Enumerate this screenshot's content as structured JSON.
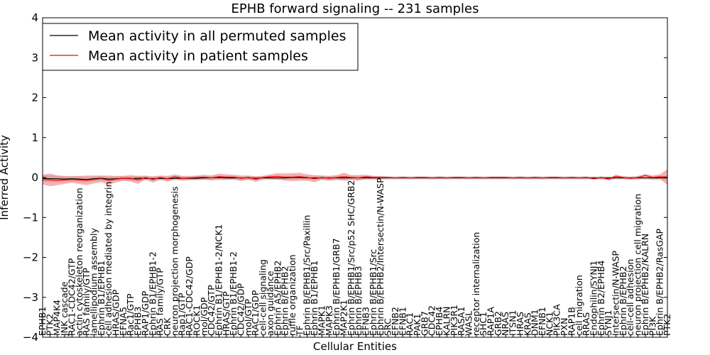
{
  "chart_data": {
    "type": "line",
    "title": "EPHB forward signaling -- 231 samples",
    "xlabel": "Cellular Entities",
    "ylabel": "Inferred Activity",
    "ylim": [
      -4,
      4
    ],
    "yticks": [
      "4",
      "3",
      "2",
      "1",
      "0",
      "−1",
      "−2",
      "−3",
      "−4"
    ],
    "grid": false,
    "legend_position": "top-left",
    "categories": [
      "EPHB1",
      "PTK2",
      "MAP4K4",
      "JNK cascade",
      "RAC1-CDC42/GTP",
      "actin cytoskeleton reorganization",
      "RAS family/GTP",
      "lamellipodium assembly",
      "Ephrin B1/EPHB1",
      "cell adhesion mediated by integrin",
      "HRAS/GDP",
      "EFNA5",
      "Rac1/GTP",
      "EPHB3",
      "RAP1/GDP",
      "Ephrin B1/EPHB1-2",
      "RAS family/GTP",
      "CRK",
      "neuron projection morphogenesis",
      "Rap1/GTP",
      "RAC1-CDC42/GDP",
      "ROCK1",
      "mol/GDP",
      "CDC42/GTP",
      "Ephrin B1/EPHB1-2/NCK1",
      "HRAS/GTP",
      "Ephrin B1/EPHB1-2",
      "CDC42/GDP",
      "mol/GTP",
      "RAC1/GDP",
      "cell-cell signaling",
      "axon guidance",
      "Ephrin A5/EPHB2",
      "Ephrin B/EPHB2",
      "ruffle organization",
      "TF",
      "Ephrin B/EPHB1/Src/Paxillin",
      "Ephrin B1/EPHB1",
      "MAPK1",
      "MAPK3",
      "Ephrin B/EPHB1/GRB7",
      "MAP2K1",
      "Ephrin B/EPHB1/Src/p52 SHC/GRB2",
      "Ephrin B/EPHB3",
      "EFNB3",
      "Ephrin B/EPHB1/Src",
      "Ephrin B/EPHB2/Intersectin/N-WASP",
      "SRC",
      "EFNB2",
      "EFNB1",
      "RAC1",
      "PAK1",
      "GRB7",
      "CDC42",
      "EPHB4",
      "KALRN",
      "PIK3R1",
      "RASA1",
      "WASL",
      "receptor internalization",
      "SHC1",
      "RAP1A",
      "GRB2",
      "NRAS",
      "ITSN1",
      "HRAS",
      "KRAS",
      "DNM1",
      "EFNB1",
      "NCK1",
      "PIK3CA",
      "PXN",
      "RAP1B",
      "cell migration",
      "RRAS",
      "Endophilin/SYNJ1",
      "Ephrin B2/EPHB4",
      "SYNJ1",
      "Intersectin/N-WASP",
      "Ephrin B/EPHB2",
      "cell-cell adhesion",
      "neuron projection cell migration",
      "Ephrin B/EPHB2/KALRN",
      "PI3K",
      "Ephrin B/EPHB2/RasGAP",
      "PTK2"
    ],
    "series": [
      {
        "name": "Mean activity in all permuted samples",
        "color": "#000000",
        "values": [
          -0.02,
          -0.03,
          -0.03,
          -0.04,
          -0.03,
          -0.04,
          -0.05,
          -0.03,
          -0.02,
          -0.04,
          -0.03,
          -0.02,
          -0.03,
          -0.02,
          -0.02,
          -0.03,
          -0.02,
          -0.03,
          -0.02,
          -0.02,
          -0.02,
          -0.02,
          -0.01,
          -0.01,
          0.0,
          -0.01,
          -0.01,
          -0.01,
          -0.01,
          -0.02,
          -0.01,
          -0.01,
          -0.01,
          -0.01,
          0.0,
          0.0,
          -0.01,
          -0.01,
          -0.01,
          -0.01,
          -0.01,
          -0.01,
          -0.01,
          -0.01,
          -0.01,
          -0.01,
          -0.01,
          -0.01,
          -0.01,
          -0.01,
          -0.01,
          -0.01,
          -0.01,
          -0.01,
          -0.01,
          -0.01,
          -0.01,
          -0.01,
          -0.01,
          -0.01,
          -0.01,
          -0.01,
          -0.01,
          -0.01,
          -0.01,
          -0.01,
          -0.01,
          -0.01,
          -0.01,
          -0.01,
          -0.01,
          -0.01,
          -0.01,
          -0.01,
          -0.01,
          -0.01,
          -0.01,
          -0.01,
          -0.01,
          -0.01,
          -0.01,
          -0.01,
          -0.01,
          -0.01,
          -0.01,
          -0.01
        ]
      },
      {
        "name": "Mean activity in patient samples",
        "color": "#ff0000",
        "values": [
          -0.05,
          -0.06,
          -0.07,
          -0.06,
          -0.05,
          -0.06,
          -0.07,
          -0.05,
          -0.03,
          -0.07,
          -0.04,
          -0.02,
          -0.02,
          -0.06,
          0.0,
          -0.05,
          0.0,
          -0.03,
          0.02,
          -0.02,
          -0.01,
          0.0,
          0.01,
          -0.01,
          0.02,
          0.01,
          0.01,
          -0.02,
          0.0,
          -0.04,
          0.0,
          0.02,
          0.03,
          0.01,
          0.01,
          0.02,
          0.0,
          -0.03,
          0.0,
          -0.02,
          0.0,
          0.02,
          0.0,
          -0.01,
          0.02,
          0.0,
          0.0,
          0.0,
          -0.01,
          0.0,
          -0.01,
          0.0,
          0.0,
          -0.01,
          0.0,
          -0.01,
          0.0,
          0.0,
          -0.01,
          0.0,
          -0.01,
          0.0,
          0.0,
          0.0,
          -0.01,
          0.0,
          -0.01,
          0.0,
          -0.01,
          0.0,
          0.0,
          -0.01,
          0.0,
          -0.01,
          0.0,
          -0.03,
          0.0,
          -0.04,
          0.03,
          0.0,
          -0.02,
          0.0,
          0.05,
          0.0,
          0.02,
          0.01
        ]
      }
    ],
    "bands": [
      {
        "series": "Mean activity in all permuted samples",
        "color": "#b0b0b0",
        "half_width": [
          0.08,
          0.08,
          0.08,
          0.07,
          0.07,
          0.07,
          0.07,
          0.06,
          0.06,
          0.06,
          0.06,
          0.06,
          0.06,
          0.06,
          0.05,
          0.05,
          0.05,
          0.05,
          0.05,
          0.05,
          0.05,
          0.05,
          0.05,
          0.05,
          0.05,
          0.05,
          0.05,
          0.05,
          0.05,
          0.05,
          0.05,
          0.05,
          0.05,
          0.05,
          0.05,
          0.05,
          0.05,
          0.05,
          0.05,
          0.05,
          0.05,
          0.05,
          0.05,
          0.05,
          0.05,
          0.05,
          0.05,
          0.04,
          0.04,
          0.04,
          0.04,
          0.04,
          0.04,
          0.04,
          0.04,
          0.04,
          0.04,
          0.04,
          0.04,
          0.04,
          0.04,
          0.04,
          0.04,
          0.04,
          0.04,
          0.04,
          0.04,
          0.04,
          0.04,
          0.04,
          0.04,
          0.04,
          0.04,
          0.04,
          0.04,
          0.04,
          0.04,
          0.04,
          0.04,
          0.04,
          0.04,
          0.04,
          0.04,
          0.05,
          0.05,
          0.06
        ]
      },
      {
        "series": "Mean activity in patient samples",
        "color": "#f08080",
        "half_width": [
          0.12,
          0.16,
          0.12,
          0.1,
          0.08,
          0.1,
          0.12,
          0.1,
          0.08,
          0.12,
          0.08,
          0.06,
          0.08,
          0.1,
          0.05,
          0.08,
          0.05,
          0.07,
          0.06,
          0.06,
          0.05,
          0.05,
          0.06,
          0.06,
          0.08,
          0.07,
          0.06,
          0.07,
          0.05,
          0.07,
          0.04,
          0.06,
          0.08,
          0.09,
          0.1,
          0.1,
          0.08,
          0.09,
          0.05,
          0.06,
          0.06,
          0.1,
          0.06,
          0.07,
          0.05,
          0.04,
          0.03,
          0.02,
          0.02,
          0.02,
          0.02,
          0.02,
          0.02,
          0.02,
          0.02,
          0.02,
          0.02,
          0.02,
          0.02,
          0.02,
          0.02,
          0.02,
          0.02,
          0.02,
          0.02,
          0.02,
          0.02,
          0.02,
          0.02,
          0.02,
          0.02,
          0.02,
          0.02,
          0.02,
          0.02,
          0.02,
          0.02,
          0.03,
          0.04,
          0.03,
          0.03,
          0.04,
          0.04,
          0.05,
          0.06,
          0.2
        ]
      }
    ]
  }
}
